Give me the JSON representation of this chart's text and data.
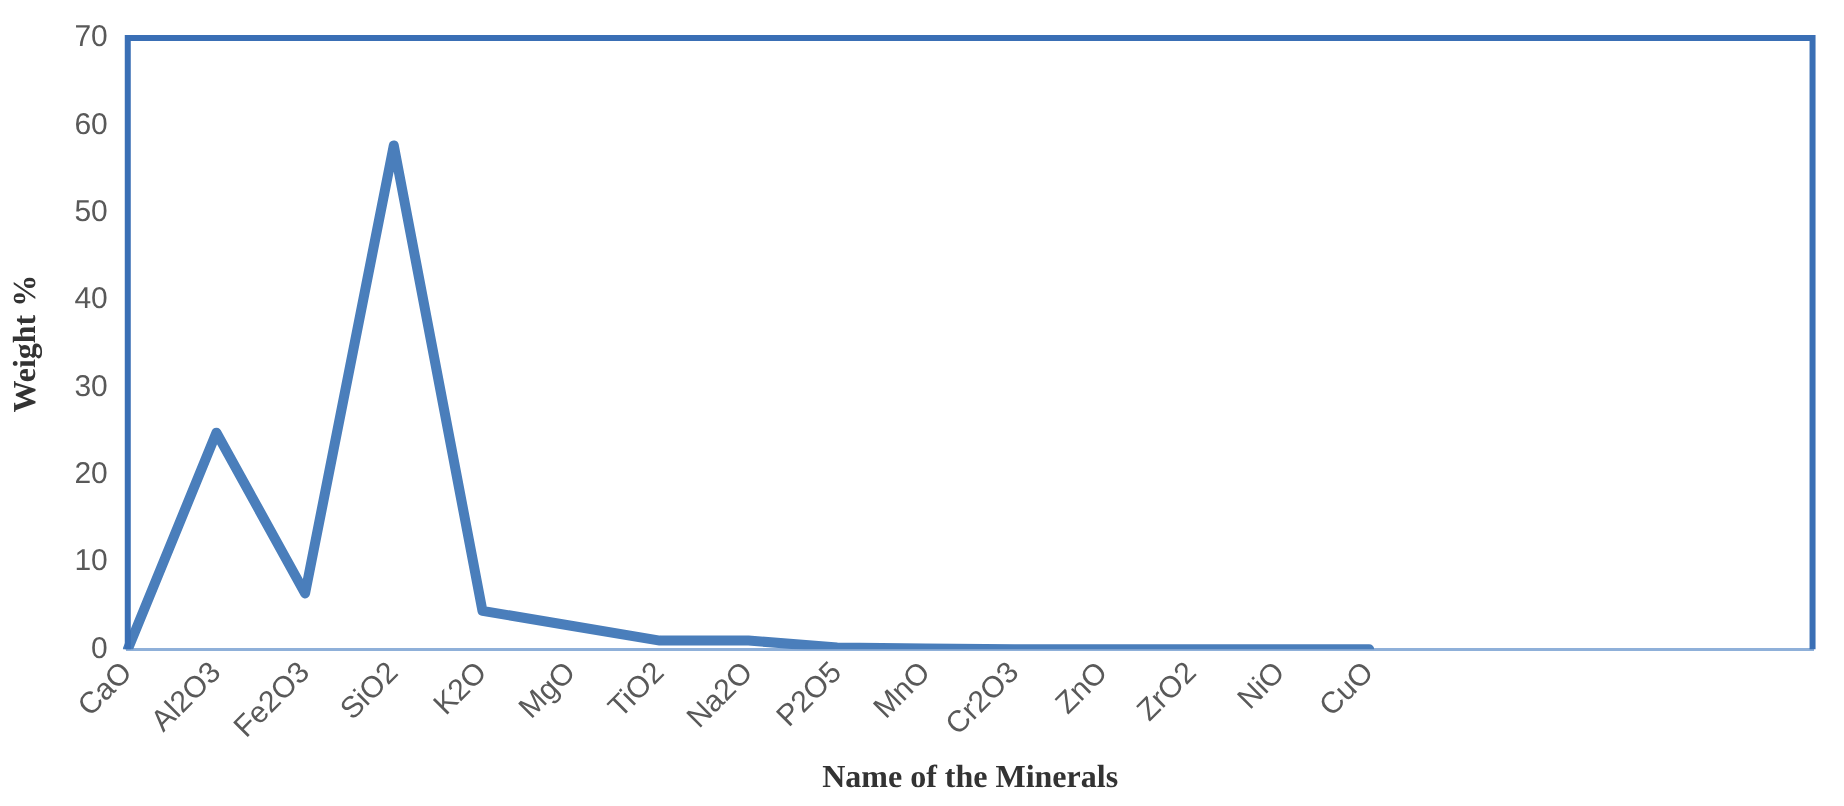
{
  "chart_data": {
    "type": "line",
    "xlabel": "Name of the Minerals",
    "ylabel": "Weight %",
    "categories": [
      "CaO",
      "Al2O3",
      "Fe2O3",
      "SiO2",
      "K2O",
      "MgO",
      "TiO2",
      "Na2O",
      "P2O5",
      "MnO",
      "Cr2O3",
      "ZnO",
      "ZrO2",
      "NiO",
      "CuO",
      null,
      null,
      null,
      null,
      null
    ],
    "series": [
      {
        "color": "#4a7ebb",
        "values": [
          0,
          24.8,
          6.4,
          57.7,
          4.4,
          2.7,
          1,
          1,
          0.2,
          0.1,
          0,
          0,
          0,
          0,
          0,
          null,
          null,
          null,
          null,
          null
        ]
      }
    ],
    "ylim": [
      0,
      70
    ],
    "yticks": [
      0,
      10,
      20,
      30,
      40,
      50,
      60,
      70
    ],
    "grid": false,
    "legend": false,
    "marker": "none",
    "line_style": "solid"
  }
}
